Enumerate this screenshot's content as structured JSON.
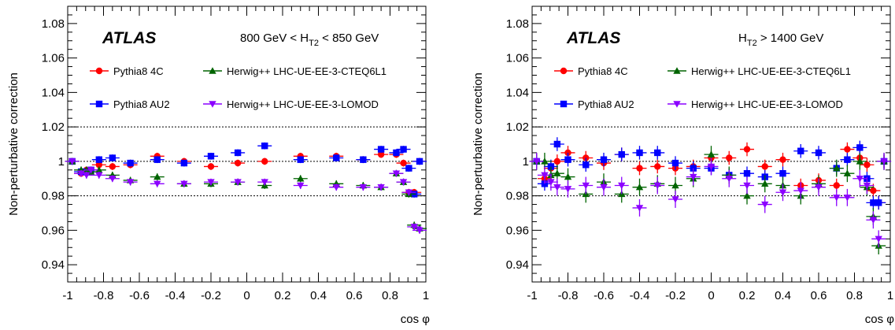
{
  "chart_data": [
    {
      "type": "scatter",
      "id": "left",
      "title": "ATLAS",
      "cut_text": {
        "pre": "800 GeV < H",
        "sub": "T2",
        "post": " < 850 GeV"
      },
      "xlabel": "cos φ",
      "ylabel": "Non-perturbative correction",
      "xlim": [
        -1,
        1
      ],
      "ylim": [
        0.93,
        1.09
      ],
      "xticks": [
        "-1",
        "-0.8",
        "-0.6",
        "-0.4",
        "-0.2",
        "0",
        "0.2",
        "0.4",
        "0.6",
        "0.8",
        "1"
      ],
      "yticks": [
        "0.94",
        "0.96",
        "0.98",
        "1",
        "1.02",
        "1.04",
        "1.06",
        "1.08"
      ],
      "reference_lines": [
        0.98,
        1.0,
        1.02
      ],
      "series": [
        {
          "name": "Pythia8 4C",
          "color": "#ff0000",
          "marker": "circle",
          "x": [
            -0.975,
            -0.925,
            -0.895,
            -0.87,
            -0.825,
            -0.75,
            -0.65,
            -0.5,
            -0.35,
            -0.2,
            -0.05,
            0.1,
            0.3,
            0.5,
            0.65,
            0.75,
            0.835,
            0.875,
            0.905,
            0.935,
            0.965
          ],
          "y": [
            1.0,
            0.993,
            0.995,
            0.995,
            0.998,
            0.997,
            0.998,
            1.003,
            1.0,
            0.997,
            0.999,
            1.0,
            1.003,
            1.003,
            1.001,
            1.004,
            1.004,
            0.999,
            0.982,
            0.982,
            1.0
          ],
          "yerr": [
            0.002,
            0.002,
            0.002,
            0.002,
            0.002,
            0.002,
            0.002,
            0.002,
            0.002,
            0.002,
            0.002,
            0.002,
            0.002,
            0.002,
            0.002,
            0.002,
            0.002,
            0.002,
            0.002,
            0.002,
            0.002
          ]
        },
        {
          "name": "Pythia8 AU2",
          "color": "#0000ff",
          "marker": "square",
          "x": [
            -0.975,
            -0.925,
            -0.895,
            -0.87,
            -0.825,
            -0.75,
            -0.65,
            -0.5,
            -0.35,
            -0.2,
            -0.05,
            0.1,
            0.3,
            0.5,
            0.65,
            0.75,
            0.835,
            0.875,
            0.905,
            0.935,
            0.965
          ],
          "y": [
            1.0,
            0.994,
            0.994,
            0.995,
            1.001,
            1.002,
            0.999,
            1.001,
            0.999,
            1.003,
            1.005,
            1.009,
            1.001,
            1.002,
            1.001,
            1.007,
            1.005,
            1.007,
            0.996,
            0.981,
            1.0
          ],
          "yerr": [
            0.002,
            0.002,
            0.002,
            0.002,
            0.002,
            0.002,
            0.002,
            0.002,
            0.002,
            0.002,
            0.002,
            0.002,
            0.002,
            0.002,
            0.002,
            0.002,
            0.002,
            0.002,
            0.002,
            0.002,
            0.002
          ]
        },
        {
          "name": "Herwig++ LHC-UE-EE-3-CTEQ6L1",
          "color": "#006400",
          "marker": "triangle-up",
          "x": [
            -0.975,
            -0.925,
            -0.895,
            -0.87,
            -0.825,
            -0.75,
            -0.65,
            -0.5,
            -0.35,
            -0.2,
            -0.05,
            0.1,
            0.3,
            0.5,
            0.65,
            0.75,
            0.835,
            0.875,
            0.905,
            0.935,
            0.965
          ],
          "y": [
            1.0,
            0.995,
            0.995,
            0.994,
            0.995,
            0.992,
            0.989,
            0.991,
            0.987,
            0.987,
            0.988,
            0.986,
            0.99,
            0.987,
            0.986,
            0.985,
            0.993,
            0.988,
            0.981,
            0.963,
            0.961
          ],
          "yerr": [
            0.002,
            0.002,
            0.002,
            0.002,
            0.002,
            0.002,
            0.002,
            0.002,
            0.002,
            0.002,
            0.002,
            0.002,
            0.002,
            0.002,
            0.002,
            0.002,
            0.002,
            0.002,
            0.002,
            0.002,
            0.002
          ]
        },
        {
          "name": "Herwig++ LHC-UE-EE-3-LOMOD",
          "color": "#8b00ff",
          "marker": "triangle-down",
          "x": [
            -0.975,
            -0.925,
            -0.895,
            -0.87,
            -0.825,
            -0.75,
            -0.65,
            -0.5,
            -0.35,
            -0.2,
            -0.05,
            0.1,
            0.3,
            0.5,
            0.65,
            0.75,
            0.835,
            0.875,
            0.905,
            0.935,
            0.965
          ],
          "y": [
            1.0,
            0.993,
            0.992,
            0.995,
            0.992,
            0.99,
            0.988,
            0.987,
            0.987,
            0.988,
            0.988,
            0.988,
            0.986,
            0.985,
            0.985,
            0.985,
            0.993,
            0.988,
            0.982,
            0.962,
            0.96
          ],
          "yerr": [
            0.002,
            0.002,
            0.002,
            0.002,
            0.002,
            0.002,
            0.002,
            0.002,
            0.002,
            0.002,
            0.002,
            0.002,
            0.002,
            0.002,
            0.002,
            0.002,
            0.002,
            0.002,
            0.002,
            0.002,
            0.002
          ]
        }
      ]
    },
    {
      "type": "scatter",
      "id": "right",
      "title": "ATLAS",
      "cut_text": {
        "pre": "H",
        "sub": "T2",
        "post": " > 1400 GeV"
      },
      "xlabel": "cos φ",
      "ylabel": "Non-perturbative correction",
      "xlim": [
        -1,
        1
      ],
      "ylim": [
        0.93,
        1.09
      ],
      "xticks": [
        "-1",
        "-0.8",
        "-0.6",
        "-0.4",
        "-0.2",
        "0",
        "0.2",
        "0.4",
        "0.6",
        "0.8",
        "1"
      ],
      "yticks": [
        "0.94",
        "0.96",
        "0.98",
        "1",
        "1.02",
        "1.04",
        "1.06",
        "1.08"
      ],
      "reference_lines": [
        0.98,
        1.0,
        1.02
      ],
      "series": [
        {
          "name": "Pythia8 4C",
          "color": "#ff0000",
          "marker": "circle",
          "x": [
            -0.975,
            -0.93,
            -0.895,
            -0.86,
            -0.8,
            -0.7,
            -0.6,
            -0.5,
            -0.4,
            -0.3,
            -0.2,
            -0.1,
            0.0,
            0.1,
            0.2,
            0.3,
            0.4,
            0.5,
            0.6,
            0.7,
            0.76,
            0.83,
            0.87,
            0.905,
            0.935,
            0.965
          ],
          "y": [
            1.0,
            0.99,
            0.996,
            1.0,
            1.005,
            1.002,
            0.999,
            1.004,
            0.996,
            0.997,
            0.996,
            0.997,
            1.002,
            1.002,
            1.007,
            0.997,
            1.001,
            0.986,
            0.989,
            0.986,
            1.007,
            1.002,
            0.998,
            0.983,
            0.976,
            1.0
          ],
          "yerr": [
            0.004,
            0.004,
            0.004,
            0.004,
            0.004,
            0.004,
            0.004,
            0.004,
            0.004,
            0.004,
            0.004,
            0.004,
            0.004,
            0.004,
            0.004,
            0.004,
            0.004,
            0.004,
            0.004,
            0.004,
            0.004,
            0.004,
            0.004,
            0.004,
            0.004,
            0.004
          ]
        },
        {
          "name": "Pythia8 AU2",
          "color": "#0000ff",
          "marker": "square",
          "x": [
            -0.975,
            -0.93,
            -0.895,
            -0.86,
            -0.8,
            -0.7,
            -0.6,
            -0.5,
            -0.4,
            -0.3,
            -0.2,
            -0.1,
            0.0,
            0.1,
            0.2,
            0.3,
            0.4,
            0.5,
            0.6,
            0.7,
            0.76,
            0.83,
            0.87,
            0.905,
            0.935,
            0.965
          ],
          "y": [
            1.0,
            0.987,
            0.997,
            1.01,
            1.001,
            0.998,
            1.001,
            1.004,
            1.005,
            1.005,
            0.999,
            0.996,
            0.996,
            0.992,
            0.993,
            0.991,
            0.993,
            1.006,
            1.005,
            0.996,
            1.001,
            1.008,
            0.99,
            0.976,
            0.976,
            1.0
          ],
          "yerr": [
            0.004,
            0.004,
            0.004,
            0.004,
            0.004,
            0.004,
            0.004,
            0.004,
            0.004,
            0.004,
            0.004,
            0.004,
            0.004,
            0.004,
            0.004,
            0.004,
            0.004,
            0.004,
            0.004,
            0.004,
            0.004,
            0.004,
            0.004,
            0.004,
            0.004,
            0.004
          ]
        },
        {
          "name": "Herwig++ LHC-UE-EE-3-CTEQ6L1",
          "color": "#006400",
          "marker": "triangle-up",
          "x": [
            -0.975,
            -0.93,
            -0.895,
            -0.86,
            -0.8,
            -0.7,
            -0.6,
            -0.5,
            -0.4,
            -0.3,
            -0.2,
            -0.1,
            0.0,
            0.1,
            0.2,
            0.3,
            0.4,
            0.5,
            0.6,
            0.7,
            0.76,
            0.83,
            0.87,
            0.905,
            0.935,
            0.965
          ],
          "y": [
            1.0,
            1.0,
            0.992,
            0.993,
            0.991,
            0.981,
            0.988,
            0.981,
            0.985,
            0.987,
            0.986,
            0.99,
            1.004,
            0.992,
            0.98,
            0.987,
            0.986,
            0.98,
            0.987,
            0.996,
            0.993,
            1.0,
            0.985,
            0.968,
            0.951,
            1.0
          ],
          "yerr": [
            0.005,
            0.005,
            0.005,
            0.005,
            0.005,
            0.005,
            0.005,
            0.005,
            0.005,
            0.005,
            0.005,
            0.005,
            0.005,
            0.005,
            0.005,
            0.005,
            0.005,
            0.005,
            0.005,
            0.005,
            0.005,
            0.005,
            0.005,
            0.005,
            0.005,
            0.005
          ]
        },
        {
          "name": "Herwig++ LHC-UE-EE-3-LOMOD",
          "color": "#8b00ff",
          "marker": "triangle-down",
          "x": [
            -0.975,
            -0.93,
            -0.895,
            -0.86,
            -0.8,
            -0.7,
            -0.6,
            -0.5,
            -0.4,
            -0.3,
            -0.2,
            -0.1,
            0.0,
            0.1,
            0.2,
            0.3,
            0.4,
            0.5,
            0.6,
            0.7,
            0.76,
            0.83,
            0.87,
            0.905,
            0.935,
            0.965
          ],
          "y": [
            1.0,
            0.992,
            0.988,
            0.985,
            0.984,
            0.986,
            0.985,
            0.986,
            0.973,
            0.986,
            0.978,
            0.991,
            0.997,
            0.99,
            0.986,
            0.975,
            0.982,
            0.983,
            0.985,
            0.979,
            0.979,
            0.99,
            0.986,
            0.966,
            0.955,
            1.0
          ],
          "yerr": [
            0.005,
            0.005,
            0.005,
            0.005,
            0.005,
            0.005,
            0.005,
            0.005,
            0.005,
            0.005,
            0.005,
            0.005,
            0.005,
            0.005,
            0.005,
            0.005,
            0.005,
            0.005,
            0.005,
            0.005,
            0.005,
            0.005,
            0.005,
            0.005,
            0.005,
            0.005
          ]
        }
      ]
    }
  ]
}
